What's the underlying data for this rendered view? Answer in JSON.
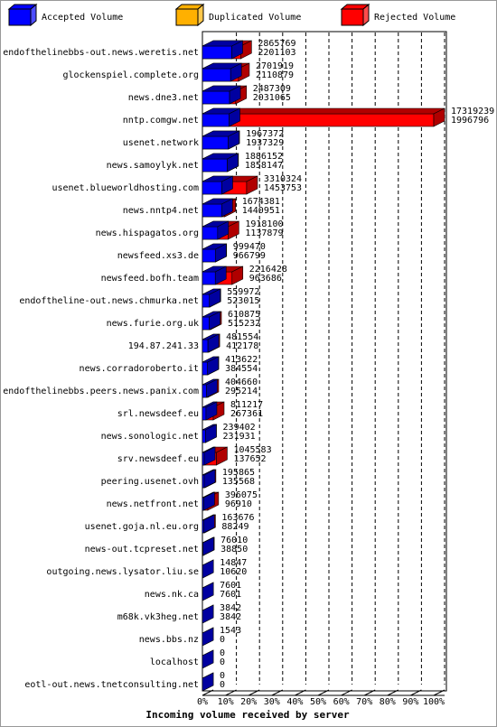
{
  "chart_data": {
    "type": "bar",
    "legend": [
      {
        "name": "Accepted Volume",
        "color": "#0000ff"
      },
      {
        "name": "Duplicated Volume",
        "color": "#ffb000"
      },
      {
        "name": "Rejected Volume",
        "color": "#ff0000"
      }
    ],
    "xlabel": "Incoming volume received by server",
    "categories": [
      "endofthelinebbs-out.news.weretis.net",
      "glockenspiel.complete.org",
      "news.dne3.net",
      "nntp.comgw.net",
      "usenet.network",
      "news.samoylyk.net",
      "usenet.blueworldhosting.com",
      "news.nntp4.net",
      "news.hispagatos.org",
      "newsfeed.xs3.de",
      "newsfeed.bofh.team",
      "endoftheline-out.news.chmurka.net",
      "news.furie.org.uk",
      "194.87.241.33",
      "news.corradoroberto.it",
      "endofthelinebbs.peers.news.panix.com",
      "srl.newsdeef.eu",
      "news.sonologic.net",
      "srv.newsdeef.eu",
      "peering.usenet.ovh",
      "news.netfront.net",
      "usenet.goja.nl.eu.org",
      "news-out.tcpreset.net",
      "outgoing.news.lysator.liu.se",
      "news.nk.ca",
      "m68k.vk3heg.net",
      "news.bbs.nz",
      "localhost",
      "eotl-out.news.tnetconsulting.net"
    ],
    "values": [
      2865769,
      2701919,
      2487309,
      17319239,
      1967372,
      1886152,
      3310324,
      1674381,
      1918100,
      999470,
      2216428,
      559972,
      610875,
      481554,
      413622,
      404660,
      811217,
      239402,
      1045583,
      195865,
      396075,
      163676,
      76010,
      14847,
      7601,
      3842,
      1543,
      0,
      0
    ],
    "accepted": [
      2201103,
      2110879,
      2031065,
      1996796,
      1937329,
      1858147,
      1453753,
      1440951,
      1137879,
      966799,
      963686,
      523015,
      515232,
      412178,
      384554,
      295214,
      267361,
      231931,
      137652,
      135568,
      96910,
      88249,
      38850,
      10620,
      7601,
      3842,
      0,
      0,
      0
    ],
    "xlim": [
      0,
      100
    ],
    "xticks": [
      {
        "value": 0,
        "label": "0%"
      },
      {
        "value": 10,
        "label": "10%"
      },
      {
        "value": 20,
        "label": "20%"
      },
      {
        "value": 30,
        "label": "30%"
      },
      {
        "value": 40,
        "label": "40%"
      },
      {
        "value": 50,
        "label": "50%"
      },
      {
        "value": 60,
        "label": "60%"
      },
      {
        "value": 70,
        "label": "70%"
      },
      {
        "value": 80,
        "label": "80%"
      },
      {
        "value": 90,
        "label": "90%"
      },
      {
        "value": 100,
        "label": "100%"
      }
    ],
    "grid": true
  }
}
